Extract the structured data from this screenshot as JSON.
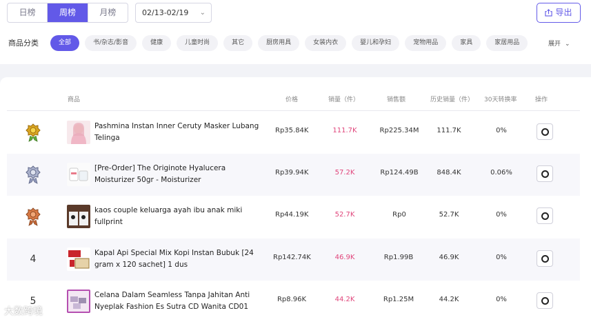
{
  "period_tabs": [
    "日榜",
    "周榜",
    "月榜"
  ],
  "date_range": "02/13-02/19",
  "export_label": "导出",
  "category_label": "商品分类",
  "categories": [
    "全部",
    "书/杂志/影音",
    "健康",
    "儿童时尚",
    "其它",
    "厨房用具",
    "女装内衣",
    "婴儿和孕妇",
    "宠物用品",
    "家具",
    "家居用品"
  ],
  "expand_label": "展开",
  "columns": [
    "商品",
    "价格",
    "销量（件）",
    "销售额",
    "历史销量（件）",
    "30天转换率",
    "操作"
  ],
  "rows": [
    {
      "rank": "",
      "medal": "gold",
      "title": "Pashmina Instan Inner Ceruty Masker Lubang Telinga",
      "price": "Rp35.84K",
      "sales": "111.7K",
      "revenue": "Rp225.34M",
      "history": "111.7K",
      "conversion": "0%"
    },
    {
      "rank": "",
      "medal": "silver",
      "title": "[Pre-Order] The Originote Hyalucera Moisturizer 50gr - Moisturizer",
      "price": "Rp39.94K",
      "sales": "57.2K",
      "revenue": "Rp124.49B",
      "history": "848.4K",
      "conversion": "0.06%"
    },
    {
      "rank": "",
      "medal": "bronze",
      "title": "kaos couple keluarga ayah ibu anak miki fullprint",
      "price": "Rp44.19K",
      "sales": "52.7K",
      "revenue": "Rp0",
      "history": "52.7K",
      "conversion": "0%"
    },
    {
      "rank": "4",
      "medal": "",
      "title": "Kapal Api Special Mix Kopi Instan Bubuk [24 gram x 120 sachet] 1 dus",
      "price": "Rp142.74K",
      "sales": "46.9K",
      "revenue": "Rp1.99B",
      "history": "46.9K",
      "conversion": "0%"
    },
    {
      "rank": "5",
      "medal": "",
      "title": "Celana Dalam Seamless Tanpa Jahitan Anti Nyeplak Fashion Es Sutra CD Wanita CD01",
      "price": "Rp8.96K",
      "sales": "44.2K",
      "revenue": "Rp1.25M",
      "history": "44.2K",
      "conversion": "0%"
    }
  ],
  "watermark": "大数跨境",
  "colors": {
    "accent": "#6259e8",
    "sales": "#e0457b",
    "gold": "#d9a521",
    "silver": "#8f97b8",
    "bronze": "#d97a45"
  }
}
